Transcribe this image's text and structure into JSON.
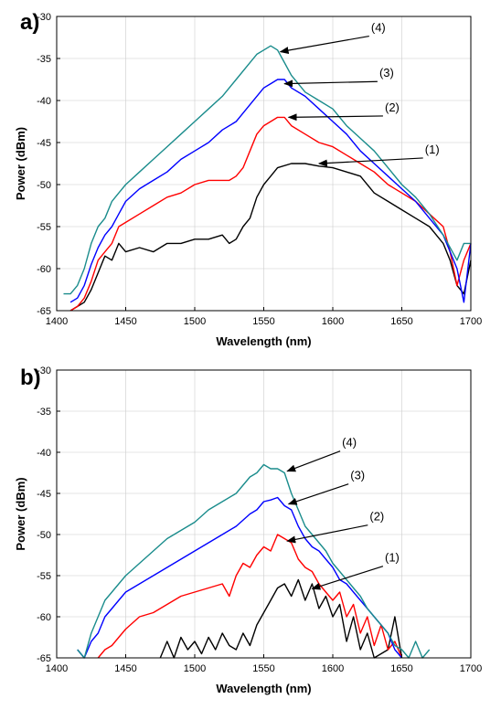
{
  "chart_data": [
    {
      "type": "line",
      "panel_label": "a)",
      "xlabel": "Wavelength (nm)",
      "ylabel": "Power (dBm)",
      "xlim": [
        1400,
        1700
      ],
      "ylim": [
        -65,
        -30
      ],
      "xticks": [
        1400,
        1450,
        1500,
        1550,
        1600,
        1650,
        1700
      ],
      "yticks": [
        -30,
        -35,
        -40,
        -45,
        -50,
        -55,
        -60,
        -65
      ],
      "grid": true,
      "series": [
        {
          "label": "(1)",
          "color": "#000000",
          "x": [
            1410,
            1415,
            1420,
            1425,
            1430,
            1435,
            1440,
            1445,
            1450,
            1460,
            1470,
            1480,
            1490,
            1500,
            1510,
            1520,
            1525,
            1530,
            1535,
            1540,
            1545,
            1550,
            1555,
            1560,
            1570,
            1580,
            1590,
            1600,
            1610,
            1620,
            1630,
            1640,
            1650,
            1660,
            1670,
            1680,
            1685,
            1690,
            1695,
            1700
          ],
          "y": [
            -65,
            -64.5,
            -64,
            -62.5,
            -60.5,
            -58.5,
            -59,
            -57,
            -58,
            -57.5,
            -58,
            -57,
            -57,
            -56.5,
            -56.5,
            -56,
            -57,
            -56.5,
            -55,
            -54,
            -51.5,
            -50,
            -49,
            -48,
            -47.5,
            -47.5,
            -47.8,
            -48,
            -48.5,
            -49,
            -51,
            -52,
            -53,
            -54,
            -55,
            -57,
            -59,
            -62,
            -63,
            -59
          ]
        },
        {
          "label": "(2)",
          "color": "#ff0000",
          "x": [
            1410,
            1415,
            1420,
            1425,
            1430,
            1435,
            1440,
            1445,
            1450,
            1460,
            1470,
            1480,
            1490,
            1500,
            1510,
            1520,
            1525,
            1530,
            1535,
            1540,
            1545,
            1550,
            1555,
            1560,
            1565,
            1570,
            1580,
            1590,
            1600,
            1610,
            1620,
            1630,
            1640,
            1650,
            1660,
            1670,
            1680,
            1685,
            1690,
            1695,
            1700
          ],
          "y": [
            -65,
            -64.5,
            -63.5,
            -61.5,
            -59,
            -58,
            -57,
            -55,
            -54.5,
            -53.5,
            -52.5,
            -51.5,
            -51,
            -50,
            -49.5,
            -49.5,
            -49.5,
            -49,
            -48,
            -46,
            -44,
            -43,
            -42.5,
            -42,
            -42,
            -43,
            -44,
            -45,
            -45.5,
            -46.5,
            -47.5,
            -48.5,
            -50,
            -51,
            -52,
            -53.5,
            -55,
            -58,
            -62,
            -59,
            -57
          ]
        },
        {
          "label": "(3)",
          "color": "#0000ff",
          "x": [
            1410,
            1415,
            1420,
            1425,
            1430,
            1435,
            1440,
            1445,
            1450,
            1460,
            1470,
            1480,
            1490,
            1500,
            1510,
            1520,
            1530,
            1540,
            1545,
            1550,
            1555,
            1560,
            1565,
            1570,
            1580,
            1590,
            1600,
            1610,
            1620,
            1630,
            1640,
            1650,
            1660,
            1670,
            1680,
            1690,
            1695,
            1700
          ],
          "y": [
            -64,
            -63.5,
            -62,
            -59.5,
            -57.5,
            -56,
            -55,
            -53.5,
            -52,
            -50.5,
            -49.5,
            -48.5,
            -47,
            -46,
            -45,
            -43.5,
            -42.5,
            -40.5,
            -39.5,
            -38.5,
            -38,
            -37.5,
            -37.5,
            -38.5,
            -39.5,
            -41,
            -42.5,
            -44,
            -46,
            -47.5,
            -49,
            -50.5,
            -52,
            -54,
            -56,
            -60,
            -64,
            -57
          ]
        },
        {
          "label": "(4)",
          "color": "#1a8c8c",
          "x": [
            1405,
            1410,
            1415,
            1420,
            1425,
            1430,
            1435,
            1440,
            1445,
            1450,
            1460,
            1470,
            1480,
            1490,
            1500,
            1510,
            1520,
            1530,
            1540,
            1545,
            1550,
            1555,
            1560,
            1565,
            1570,
            1580,
            1590,
            1600,
            1610,
            1620,
            1630,
            1640,
            1650,
            1660,
            1670,
            1680,
            1690,
            1695,
            1700
          ],
          "y": [
            -63,
            -63,
            -62,
            -60,
            -57,
            -55,
            -54,
            -52,
            -51,
            -50,
            -48.5,
            -47,
            -45.5,
            -44,
            -42.5,
            -41,
            -39.5,
            -37.5,
            -35.5,
            -34.5,
            -34,
            -33.5,
            -34,
            -35.5,
            -37,
            -39,
            -40,
            -41,
            -43,
            -44.5,
            -46,
            -48,
            -50,
            -51.5,
            -53.5,
            -56,
            -59,
            -57,
            -57
          ]
        }
      ],
      "annotations": [
        {
          "text": "(4)",
          "text_x": 1633,
          "text_y": -31.8,
          "arrow_x": 1562,
          "arrow_y": -34.2
        },
        {
          "text": "(3)",
          "text_x": 1639,
          "text_y": -37.2,
          "arrow_x": 1565,
          "arrow_y": -38
        },
        {
          "text": "(2)",
          "text_x": 1643,
          "text_y": -41.3,
          "arrow_x": 1568,
          "arrow_y": -42
        },
        {
          "text": "(1)",
          "text_x": 1672,
          "text_y": -46.3,
          "arrow_x": 1590,
          "arrow_y": -47.5
        }
      ]
    },
    {
      "type": "line",
      "panel_label": "b)",
      "xlabel": "Wavelength (nm)",
      "ylabel": "Power (dBm)",
      "xlim": [
        1400,
        1700
      ],
      "ylim": [
        -65,
        -30
      ],
      "xticks": [
        1400,
        1450,
        1500,
        1550,
        1600,
        1650,
        1700
      ],
      "yticks": [
        -30,
        -35,
        -40,
        -45,
        -50,
        -55,
        -60,
        -65
      ],
      "grid": true,
      "series": [
        {
          "label": "(1)",
          "color": "#000000",
          "x": [
            1475,
            1480,
            1485,
            1490,
            1495,
            1500,
            1505,
            1510,
            1515,
            1520,
            1525,
            1530,
            1535,
            1540,
            1545,
            1550,
            1555,
            1560,
            1565,
            1570,
            1575,
            1580,
            1585,
            1590,
            1595,
            1600,
            1605,
            1610,
            1615,
            1620,
            1625,
            1630,
            1640,
            1645,
            1650
          ],
          "y": [
            -65,
            -63,
            -65,
            -62.5,
            -64,
            -63,
            -64.5,
            -62.5,
            -64,
            -62,
            -63.5,
            -64,
            -62,
            -63.5,
            -61,
            -59.5,
            -58,
            -56.5,
            -56,
            -57.5,
            -55.5,
            -58,
            -56,
            -59,
            -57.5,
            -60,
            -58.5,
            -63,
            -60,
            -64,
            -62,
            -65,
            -64,
            -60,
            -65
          ]
        },
        {
          "label": "(2)",
          "color": "#ff0000",
          "x": [
            1430,
            1435,
            1440,
            1445,
            1450,
            1460,
            1470,
            1480,
            1490,
            1500,
            1510,
            1520,
            1525,
            1530,
            1535,
            1540,
            1545,
            1550,
            1555,
            1560,
            1565,
            1570,
            1575,
            1580,
            1585,
            1590,
            1595,
            1600,
            1605,
            1610,
            1615,
            1620,
            1625,
            1630,
            1635,
            1640,
            1645,
            1650
          ],
          "y": [
            -65,
            -64,
            -63.5,
            -62.5,
            -61.5,
            -60,
            -59.5,
            -58.5,
            -57.5,
            -57,
            -56.5,
            -56,
            -57.5,
            -55,
            -53.5,
            -54,
            -52.5,
            -51.5,
            -52,
            -50,
            -50.5,
            -51,
            -53,
            -54,
            -54.5,
            -56,
            -57,
            -58,
            -57,
            -60,
            -58.5,
            -62,
            -60,
            -63.5,
            -61,
            -64,
            -63,
            -65
          ]
        },
        {
          "label": "(3)",
          "color": "#0000ff",
          "x": [
            1415,
            1420,
            1425,
            1430,
            1435,
            1440,
            1445,
            1450,
            1460,
            1470,
            1480,
            1490,
            1500,
            1510,
            1520,
            1530,
            1540,
            1545,
            1550,
            1555,
            1560,
            1565,
            1570,
            1575,
            1580,
            1585,
            1590,
            1595,
            1600,
            1605,
            1610,
            1615,
            1620,
            1625,
            1630,
            1635,
            1640,
            1645,
            1650
          ],
          "y": [
            -64,
            -65,
            -63,
            -62,
            -60,
            -59,
            -58,
            -57,
            -56,
            -55,
            -54,
            -53,
            -52,
            -51,
            -50,
            -49,
            -47.5,
            -47,
            -46,
            -45.8,
            -45.5,
            -46.5,
            -47,
            -49,
            -50.5,
            -51.5,
            -52,
            -53,
            -54,
            -55.5,
            -56,
            -57,
            -58,
            -59,
            -60,
            -61,
            -62,
            -64,
            -65
          ]
        },
        {
          "label": "(4)",
          "color": "#1a8c8c",
          "x": [
            1415,
            1420,
            1425,
            1430,
            1435,
            1440,
            1445,
            1450,
            1460,
            1470,
            1480,
            1490,
            1500,
            1510,
            1520,
            1530,
            1540,
            1545,
            1550,
            1555,
            1560,
            1565,
            1570,
            1575,
            1580,
            1585,
            1590,
            1595,
            1600,
            1605,
            1610,
            1615,
            1620,
            1625,
            1630,
            1635,
            1640,
            1645,
            1650,
            1655,
            1660,
            1665,
            1670
          ],
          "y": [
            -64,
            -65,
            -62,
            -60,
            -58,
            -57,
            -56,
            -55,
            -53.5,
            -52,
            -50.5,
            -49.5,
            -48.5,
            -47,
            -46,
            -45,
            -43,
            -42.5,
            -41.5,
            -42,
            -42,
            -42.5,
            -45,
            -47,
            -49,
            -50,
            -51,
            -52,
            -53.5,
            -54.5,
            -55.5,
            -56.5,
            -57.5,
            -59,
            -60,
            -61,
            -62,
            -63.5,
            -64,
            -65,
            -63,
            -65,
            -64
          ]
        }
      ],
      "annotations": [
        {
          "text": "(4)",
          "text_x": 1612,
          "text_y": -39.3,
          "arrow_x": 1567,
          "arrow_y": -42.3
        },
        {
          "text": "(3)",
          "text_x": 1618,
          "text_y": -43.3,
          "arrow_x": 1568,
          "arrow_y": -46.3
        },
        {
          "text": "(2)",
          "text_x": 1632,
          "text_y": -48.3,
          "arrow_x": 1567,
          "arrow_y": -50.8
        },
        {
          "text": "(1)",
          "text_x": 1643,
          "text_y": -53.3,
          "arrow_x": 1585,
          "arrow_y": -56.6
        }
      ]
    }
  ]
}
